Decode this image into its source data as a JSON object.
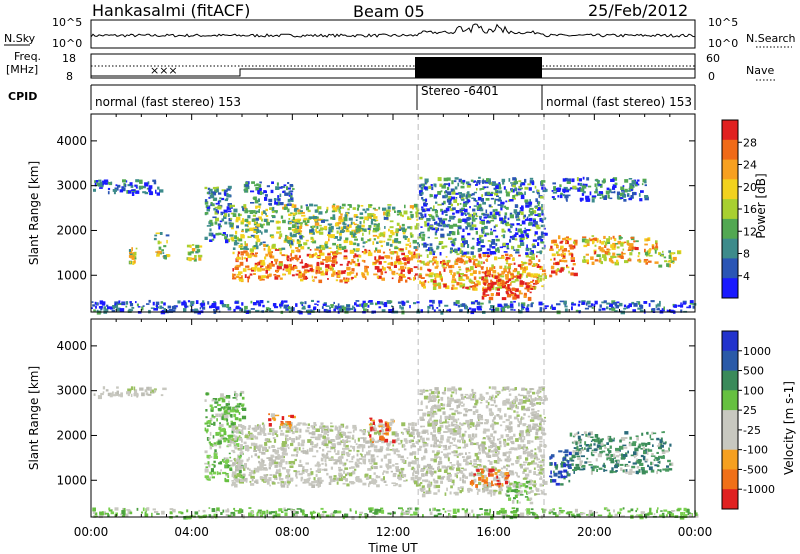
{
  "header": {
    "station": "Hankasalmi (fitACF)",
    "beam": "Beam 05",
    "date": "25/Feb/2012"
  },
  "top_panels": {
    "nsky_label": "N.Sky",
    "nsky_ticks": [
      "10^5",
      "10^0"
    ],
    "nsearch_label": "N.Search",
    "nsearch_ticks": [
      "10^5",
      "10^0"
    ],
    "freq_label_1": "Freq.",
    "freq_label_2": "[MHz]",
    "freq_ticks": [
      "18",
      "8"
    ],
    "nave_label": "Nave",
    "nave_ticks": [
      "60",
      "0"
    ],
    "cpid_label": "CPID",
    "cpid_segments": [
      {
        "start_hr": 0,
        "end_hr": 13,
        "text": "normal (fast stereo) 153"
      },
      {
        "start_hr": 13,
        "end_hr": 18,
        "text": "Stereo -6401"
      },
      {
        "start_hr": 18,
        "end_hr": 24,
        "text": "normal (fast stereo) 153"
      }
    ]
  },
  "x_axis": {
    "label": "Time UT",
    "ticks": [
      "00:00",
      "04:00",
      "08:00",
      "12:00",
      "16:00",
      "20:00",
      "00:00"
    ]
  },
  "chart_data": [
    {
      "type": "heatmap",
      "title": "Power",
      "ylabel": "Slant Range [km]",
      "yticks": [
        "1000",
        "2000",
        "3000",
        "4000"
      ],
      "ylim": [
        180,
        4600
      ],
      "xlim_hours": [
        0,
        24
      ],
      "colorbar_label": "Power [dB]",
      "colorbar_ticks": [
        "4",
        "8",
        "12",
        "16",
        "20",
        "24",
        "28"
      ],
      "colorbar_colors": [
        "#1a1aff",
        "#2a55b5",
        "#3d8b8b",
        "#52a852",
        "#a8d030",
        "#f2d21e",
        "#f7a020",
        "#f06a18",
        "#e02020"
      ],
      "regions": [
        {
          "t0": 0.0,
          "t1": 2.8,
          "r0": 2850,
          "r1": 3150,
          "level": 0.2
        },
        {
          "t0": 0.0,
          "t1": 24.0,
          "r0": 200,
          "r1": 450,
          "level": 0.15
        },
        {
          "t0": 1.5,
          "t1": 1.8,
          "r0": 1300,
          "r1": 1650,
          "level": 0.55
        },
        {
          "t0": 2.5,
          "t1": 3.0,
          "r0": 1400,
          "r1": 2000,
          "level": 0.45
        },
        {
          "t0": 3.8,
          "t1": 4.3,
          "r0": 1350,
          "r1": 1700,
          "level": 0.5
        },
        {
          "t0": 4.5,
          "t1": 5.5,
          "r0": 1800,
          "r1": 3000,
          "level": 0.25
        },
        {
          "t0": 5.5,
          "t1": 13.0,
          "r0": 1600,
          "r1": 2600,
          "level": 0.45
        },
        {
          "t0": 5.6,
          "t1": 13.0,
          "r0": 900,
          "r1": 1600,
          "level": 0.8
        },
        {
          "t0": 6.0,
          "t1": 8.0,
          "r0": 2600,
          "r1": 3100,
          "level": 0.2
        },
        {
          "t0": 13.0,
          "t1": 18.0,
          "r0": 700,
          "r1": 1500,
          "level": 0.7
        },
        {
          "t0": 13.0,
          "t1": 18.0,
          "r0": 1500,
          "r1": 3200,
          "level": 0.25
        },
        {
          "t0": 15.5,
          "t1": 17.5,
          "r0": 500,
          "r1": 1100,
          "level": 0.9
        },
        {
          "t0": 18.3,
          "t1": 22.0,
          "r0": 2700,
          "r1": 3200,
          "level": 0.2
        },
        {
          "t0": 18.2,
          "t1": 19.2,
          "r0": 1000,
          "r1": 1900,
          "level": 0.75
        },
        {
          "t0": 19.5,
          "t1": 22.5,
          "r0": 1300,
          "r1": 1900,
          "level": 0.65
        },
        {
          "t0": 22.5,
          "t1": 23.3,
          "r0": 1200,
          "r1": 1600,
          "level": 0.5
        }
      ]
    },
    {
      "type": "heatmap",
      "title": "Velocity",
      "ylabel": "Slant Range [km]",
      "yticks": [
        "1000",
        "2000",
        "3000",
        "4000"
      ],
      "ylim": [
        180,
        4600
      ],
      "xlim_hours": [
        0,
        24
      ],
      "colorbar_label": "Velocity [m s-1]",
      "colorbar_ticks": [
        "1000",
        "500",
        "100",
        "25",
        "-25",
        "-100",
        "-500",
        "-1000"
      ],
      "colorbar_colors": [
        "#2233cc",
        "#2a5aa8",
        "#3a8a5a",
        "#66c040",
        "#c8c8c0",
        "#c8c8c0",
        "#f5a020",
        "#f07018",
        "#e02020"
      ],
      "regions": [
        {
          "t0": 0.0,
          "t1": 3.0,
          "r0": 2900,
          "r1": 3100,
          "kind": "gray"
        },
        {
          "t0": 4.5,
          "t1": 6.0,
          "r0": 1000,
          "r1": 3000,
          "kind": "green"
        },
        {
          "t0": 5.5,
          "t1": 13.0,
          "r0": 900,
          "r1": 2300,
          "kind": "gray"
        },
        {
          "t0": 13.0,
          "t1": 18.0,
          "r0": 700,
          "r1": 3100,
          "kind": "gray"
        },
        {
          "t0": 16.5,
          "t1": 17.5,
          "r0": 500,
          "r1": 1000,
          "kind": "green"
        },
        {
          "t0": 15.0,
          "t1": 16.5,
          "r0": 900,
          "r1": 1300,
          "kind": "orange"
        },
        {
          "t0": 19.0,
          "t1": 23.0,
          "r0": 1200,
          "r1": 2100,
          "kind": "teal"
        },
        {
          "t0": 18.2,
          "t1": 19.0,
          "r0": 900,
          "r1": 1700,
          "kind": "blue"
        },
        {
          "t0": 0.0,
          "t1": 24.0,
          "r0": 200,
          "r1": 400,
          "kind": "green"
        },
        {
          "t0": 11.0,
          "t1": 12.0,
          "r0": 1900,
          "r1": 2400,
          "kind": "orange"
        },
        {
          "t0": 7.0,
          "t1": 8.0,
          "r0": 2200,
          "r1": 2500,
          "kind": "orange"
        }
      ]
    }
  ]
}
